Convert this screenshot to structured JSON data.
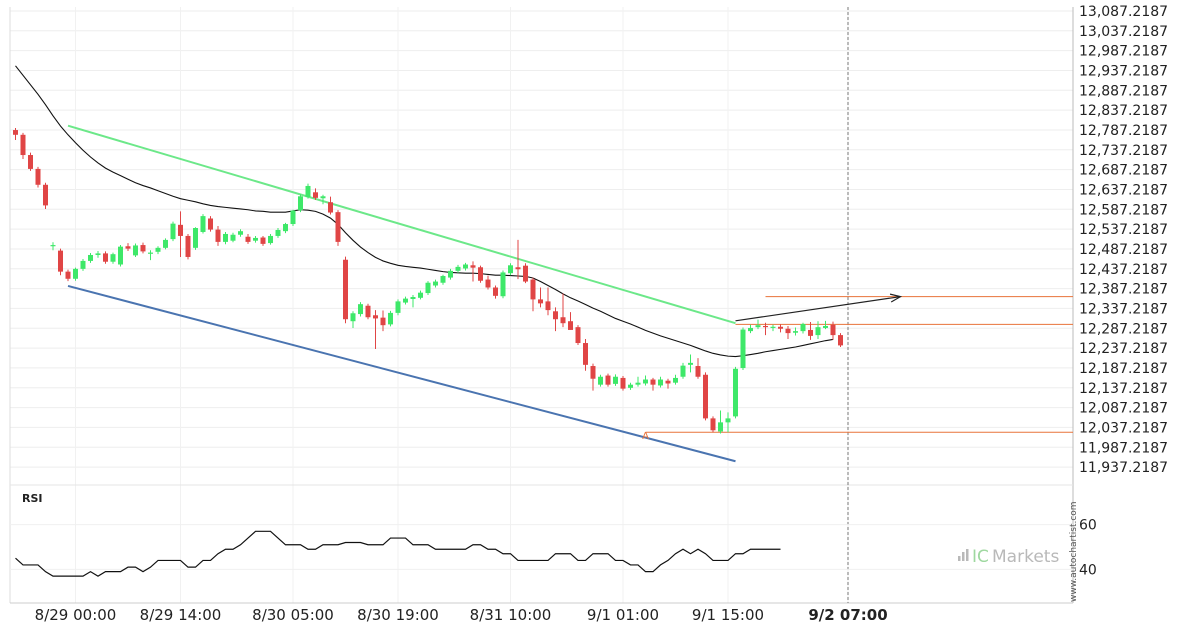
{
  "chart_data": {
    "type": "candlestick",
    "main_panel": {
      "y_axis": {
        "ylim": [
          11912.2187,
          13097.2187
        ],
        "tick_labels": [
          "13,087.2187",
          "13,037.2187",
          "12,987.2187",
          "12,937.2187",
          "12,887.2187",
          "12,837.2187",
          "12,787.2187",
          "12,737.2187",
          "12,687.2187",
          "12,637.2187",
          "12,587.2187",
          "12,537.2187",
          "12,487.2187",
          "12,437.2187",
          "12,387.2187",
          "12,337.2187",
          "12,287.2187",
          "12,237.2187",
          "12,187.2187",
          "12,137.2187",
          "12,087.2187",
          "12,037.2187",
          "11,987.2187",
          "11,937.2187"
        ],
        "tick_values": [
          13087.2187,
          13037.2187,
          12987.2187,
          12937.2187,
          12887.2187,
          12837.2187,
          12787.2187,
          12737.2187,
          12687.2187,
          12637.2187,
          12587.2187,
          12537.2187,
          12487.2187,
          12437.2187,
          12387.2187,
          12337.2187,
          12287.2187,
          12237.2187,
          12187.2187,
          12137.2187,
          12087.2187,
          12037.2187,
          11987.2187,
          11937.2187
        ]
      },
      "x_axis": {
        "tick_labels": [
          "8/29 00:00",
          "8/29 14:00",
          "8/30 05:00",
          "8/30 19:00",
          "8/31 10:00",
          "9/1 01:00",
          "9/1 15:00",
          "9/2 07:00"
        ],
        "tick_candle_index": [
          8,
          22,
          37,
          51,
          66,
          81,
          95,
          111
        ],
        "current_label": "9/2 07:00",
        "current_candle_index": 111
      },
      "candles": [
        [
          12787,
          12792,
          12762,
          12775
        ],
        [
          12775,
          12780,
          12714,
          12724
        ],
        [
          12724,
          12730,
          12684,
          12689
        ],
        [
          12689,
          12694,
          12642,
          12649
        ],
        [
          12649,
          12654,
          12588,
          12597
        ],
        [
          12494,
          12504,
          12484,
          12497
        ],
        [
          12483,
          12488,
          12421,
          12430
        ],
        [
          12430,
          12435,
          12406,
          12412
        ],
        [
          12412,
          12440,
          12407,
          12437
        ],
        [
          12437,
          12462,
          12432,
          12457
        ],
        [
          12457,
          12477,
          12452,
          12472
        ],
        [
          12472,
          12482,
          12465,
          12476
        ],
        [
          12476,
          12481,
          12450,
          12455
        ],
        [
          12455,
          12478,
          12450,
          12474
        ],
        [
          12448,
          12497,
          12443,
          12493
        ],
        [
          12494,
          12502,
          12482,
          12488
        ],
        [
          12471,
          12501,
          12467,
          12496
        ],
        [
          12497,
          12503,
          12476,
          12481
        ],
        [
          12475,
          12484,
          12459,
          12478
        ],
        [
          12480,
          12494,
          12474,
          12490
        ],
        [
          12490,
          12514,
          12486,
          12510
        ],
        [
          12512,
          12556,
          12507,
          12551
        ],
        [
          12548,
          12582,
          12467,
          12520
        ],
        [
          12520,
          12525,
          12461,
          12467
        ],
        [
          12490,
          12542,
          12485,
          12540
        ],
        [
          12530,
          12575,
          12526,
          12570
        ],
        [
          12564,
          12570,
          12531,
          12536
        ],
        [
          12536,
          12545,
          12495,
          12505
        ],
        [
          12505,
          12530,
          12499,
          12525
        ],
        [
          12508,
          12528,
          12504,
          12523
        ],
        [
          12523,
          12537,
          12518,
          12532
        ],
        [
          12518,
          12525,
          12500,
          12505
        ],
        [
          12508,
          12520,
          12503,
          12515
        ],
        [
          12516,
          12520,
          12495,
          12500
        ],
        [
          12502,
          12525,
          12498,
          12520
        ],
        [
          12520,
          12540,
          12515,
          12535
        ],
        [
          12532,
          12553,
          12527,
          12550
        ],
        [
          12550,
          12586,
          12545,
          12584
        ],
        [
          12585,
          12625,
          12580,
          12620
        ],
        [
          12618,
          12652,
          12614,
          12646
        ],
        [
          12630,
          12640,
          12611,
          12616
        ],
        [
          12615,
          12624,
          12600,
          12620
        ],
        [
          12605,
          12619,
          12574,
          12579
        ],
        [
          12580,
          12585,
          12495,
          12505
        ],
        [
          12460,
          12468,
          12300,
          12310
        ],
        [
          12305,
          12330,
          12288,
          12325
        ],
        [
          12323,
          12353,
          12317,
          12348
        ],
        [
          12344,
          12349,
          12310,
          12315
        ],
        [
          12320,
          12333,
          12235,
          12312
        ],
        [
          12314,
          12332,
          12280,
          12295
        ],
        [
          12297,
          12331,
          12292,
          12326
        ],
        [
          12326,
          12360,
          12320,
          12355
        ],
        [
          12352,
          12367,
          12347,
          12362
        ],
        [
          12361,
          12371,
          12340,
          12366
        ],
        [
          12364,
          12382,
          12360,
          12377
        ],
        [
          12376,
          12406,
          12371,
          12402
        ],
        [
          12395,
          12410,
          12390,
          12405
        ],
        [
          12402,
          12422,
          12397,
          12419
        ],
        [
          12415,
          12437,
          12410,
          12432
        ],
        [
          12432,
          12447,
          12427,
          12442
        ],
        [
          12438,
          12452,
          12433,
          12448
        ],
        [
          12446,
          12456,
          12405,
          12440
        ],
        [
          12441,
          12445,
          12402,
          12407
        ],
        [
          12410,
          12420,
          12385,
          12390
        ],
        [
          12390,
          12395,
          12362,
          12369
        ],
        [
          12368,
          12433,
          12363,
          12428
        ],
        [
          12426,
          12451,
          12421,
          12446
        ],
        [
          12441,
          12510,
          12411,
          12436
        ],
        [
          12445,
          12451,
          12401,
          12405
        ],
        [
          12410,
          12415,
          12330,
          12360
        ],
        [
          12360,
          12390,
          12340,
          12350
        ],
        [
          12355,
          12390,
          12320,
          12333
        ],
        [
          12330,
          12340,
          12280,
          12310
        ],
        [
          12315,
          12375,
          12290,
          12300
        ],
        [
          12305,
          12328,
          12285,
          12283
        ],
        [
          12290,
          12295,
          12245,
          12250
        ],
        [
          12250,
          12260,
          12180,
          12195
        ],
        [
          12192,
          12198,
          12130,
          12160
        ],
        [
          12145,
          12170,
          12140,
          12165
        ],
        [
          12168,
          12173,
          12140,
          12145
        ],
        [
          12147,
          12171,
          12142,
          12165
        ],
        [
          12162,
          12167,
          12130,
          12135
        ],
        [
          12137,
          12150,
          12132,
          12145
        ],
        [
          12145,
          12165,
          12140,
          12150
        ],
        [
          12148,
          12168,
          12143,
          12158
        ],
        [
          12158,
          12162,
          12130,
          12145
        ],
        [
          12143,
          12165,
          12138,
          12158
        ],
        [
          12155,
          12160,
          12135,
          12148
        ],
        [
          12150,
          12170,
          12145,
          12162
        ],
        [
          12165,
          12200,
          12160,
          12193
        ],
        [
          12195,
          12221,
          12176,
          12200
        ],
        [
          12192,
          12212,
          12160,
          12165
        ],
        [
          12170,
          12176,
          12055,
          12060
        ],
        [
          12060,
          12065,
          12025,
          12030
        ],
        [
          12027,
          12080,
          12022,
          12050
        ],
        [
          12050,
          12075,
          12025,
          12060
        ],
        [
          12065,
          12190,
          12060,
          12185
        ],
        [
          12187,
          12289,
          12182,
          12284
        ],
        [
          12280,
          12296,
          12275,
          12288
        ],
        [
          12290,
          12309,
          12285,
          12295
        ],
        [
          12293,
          12301,
          12270,
          12290
        ],
        [
          12288,
          12296,
          12280,
          12291
        ],
        [
          12291,
          12297,
          12277,
          12286
        ],
        [
          12286,
          12293,
          12260,
          12275
        ],
        [
          12276,
          12289,
          12269,
          12280
        ],
        [
          12280,
          12301,
          12274,
          12298
        ],
        [
          12283,
          12303,
          12258,
          12268
        ],
        [
          12270,
          12305,
          12260,
          12290
        ],
        [
          12288,
          12306,
          12285,
          12293
        ],
        [
          12296,
          12304,
          12258,
          12270
        ],
        [
          12270,
          12275,
          12240,
          12244
        ]
      ],
      "moving_average": [
        12949,
        12925,
        12901,
        12877,
        12851,
        12823,
        12797,
        12775,
        12755,
        12736,
        12719,
        12704,
        12691,
        12681,
        12672,
        12663,
        12654,
        12647,
        12641,
        12634,
        12627,
        12620,
        12614,
        12610,
        12606,
        12601,
        12597,
        12594,
        12592,
        12590,
        12588,
        12586,
        12583,
        12582,
        12580,
        12580,
        12580,
        12583,
        12586,
        12585,
        12582,
        12575,
        12565,
        12549,
        12528,
        12509,
        12492,
        12478,
        12466,
        12457,
        12451,
        12446,
        12443,
        12441,
        12439,
        12436,
        12433,
        12430,
        12428,
        12427,
        12426,
        12426,
        12425,
        12423,
        12421,
        12421,
        12420,
        12419,
        12418,
        12414,
        12405,
        12395,
        12385,
        12374,
        12364,
        12356,
        12347,
        12338,
        12330,
        12321,
        12312,
        12305,
        12298,
        12290,
        12282,
        12275,
        12268,
        12262,
        12256,
        12250,
        12244,
        12237,
        12230,
        12224,
        12220,
        12217,
        12216,
        12218,
        12221,
        12224,
        12228,
        12231,
        12234,
        12237,
        12240,
        12244,
        12248,
        12252,
        12256,
        12259
      ],
      "channel_upper_line": {
        "from": [
          7,
          12798
        ],
        "to": [
          96,
          12300
        ]
      },
      "channel_lower_line": {
        "from": [
          7,
          12394
        ],
        "to": [
          96,
          11952
        ]
      },
      "projection_arrow": {
        "from": [
          96,
          12306
        ],
        "to": [
          118,
          12367
        ]
      },
      "levels": [
        {
          "value": 12367,
          "from_candle": 100,
          "color": "#e8733a"
        },
        {
          "value": 12297,
          "from_candle": 96,
          "color": "#e8733a"
        },
        {
          "value": 12025,
          "from_candle": 84,
          "color": "#e8733a"
        }
      ],
      "marker": {
        "label": "A",
        "candle_index": 84,
        "value": 12008
      },
      "colors": {
        "up": "#3ee869",
        "down": "#e04545",
        "upper_line": "#6ce889",
        "lower_line": "#4a74b0",
        "ma": "#111111",
        "projection": "#222222"
      }
    },
    "rsi_panel": {
      "title": "RSI",
      "ylim": [
        25,
        75
      ],
      "tick_labels": [
        "60",
        "40"
      ],
      "tick_values": [
        60,
        40
      ],
      "values": [
        45,
        42,
        42,
        42,
        39,
        37,
        37,
        37,
        37,
        37,
        39,
        37,
        39,
        39,
        39,
        41,
        41,
        39,
        41,
        44,
        44,
        44,
        44,
        41,
        41,
        44,
        44,
        47,
        49,
        49,
        51,
        54,
        57,
        57,
        57,
        54,
        51,
        51,
        51,
        49,
        49,
        51,
        51,
        51,
        52,
        52,
        52,
        51,
        51,
        51,
        54,
        54,
        54,
        51,
        51,
        51,
        49,
        49,
        49,
        49,
        49,
        51,
        51,
        49,
        49,
        47,
        47,
        44,
        44,
        44,
        44,
        44,
        47,
        47,
        47,
        44,
        44,
        47,
        47,
        47,
        44,
        44,
        42,
        42,
        39,
        39,
        42,
        44,
        47,
        49,
        47,
        49,
        47,
        44,
        44,
        44,
        47,
        47,
        49,
        49,
        49,
        49,
        49
      ]
    }
  },
  "watermark": "www.autochartist.com",
  "brand": {
    "prefix": "IC",
    "name": "Markets"
  }
}
